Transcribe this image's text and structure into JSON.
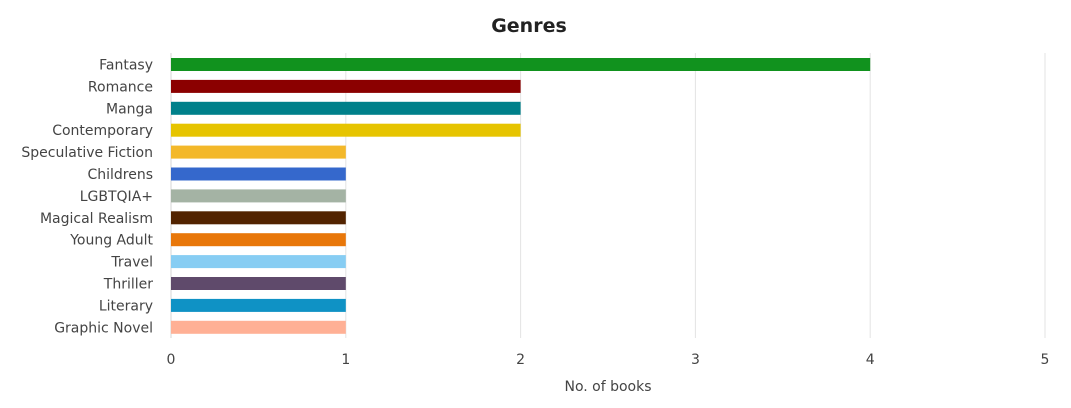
{
  "chart_data": {
    "type": "bar",
    "orientation": "horizontal",
    "title": "Genres",
    "xlabel": "No. of books",
    "ylabel": "",
    "xlim": [
      0,
      5
    ],
    "x_ticks": [
      "0",
      "1",
      "2",
      "3",
      "4",
      "5"
    ],
    "grid": true,
    "legend": "none",
    "categories": [
      "Fantasy",
      "Romance",
      "Manga",
      "Contemporary",
      "Speculative Fiction",
      "Childrens",
      "LGBTQIA+",
      "Magical Realism",
      "Young Adult",
      "Travel",
      "Thriller",
      "Literary",
      "Graphic Novel"
    ],
    "values": [
      4,
      2,
      2,
      2,
      1,
      1,
      1,
      1,
      1,
      1,
      1,
      1,
      1
    ],
    "colors": [
      "#11921e",
      "#8b0000",
      "#00808a",
      "#e6c400",
      "#f3b82a",
      "#3568cc",
      "#a4b3a4",
      "#522300",
      "#e8770a",
      "#87cdf3",
      "#5f4a6b",
      "#0f92c5",
      "#ffb095"
    ]
  }
}
